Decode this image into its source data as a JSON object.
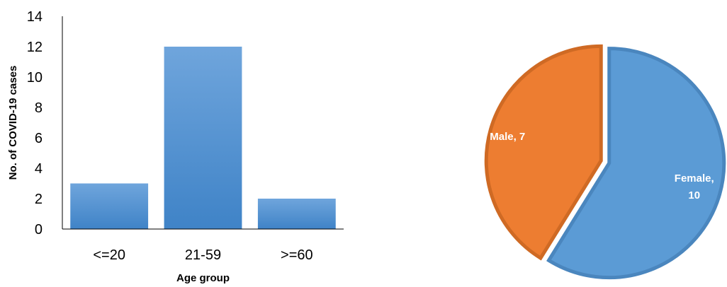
{
  "chart_data": [
    {
      "type": "bar",
      "title": "",
      "categories": [
        "<=20",
        "21-59",
        ">=60"
      ],
      "values": [
        3,
        12,
        2
      ],
      "xlabel": "Age group",
      "ylabel": "No. of COVID-19 cases",
      "ylim": [
        0,
        14
      ],
      "yticks": [
        "0",
        "2",
        "4",
        "6",
        "8",
        "10",
        "12",
        "14"
      ],
      "grid": false,
      "legend": "none",
      "colors": {
        "bar_top": "#6fa5dc",
        "bar_bottom": "#3f83c7"
      }
    },
    {
      "type": "pie",
      "title": "",
      "slices": [
        {
          "label": "Female, 10",
          "name": "Female",
          "value": 10,
          "color": "#5b9bd5",
          "edge": "#4a86be"
        },
        {
          "label": "Male, 7",
          "name": "Male",
          "value": 7,
          "color": "#ed7d31",
          "edge": "#cf6a24"
        }
      ],
      "exploded": true,
      "legend": "none"
    }
  ]
}
